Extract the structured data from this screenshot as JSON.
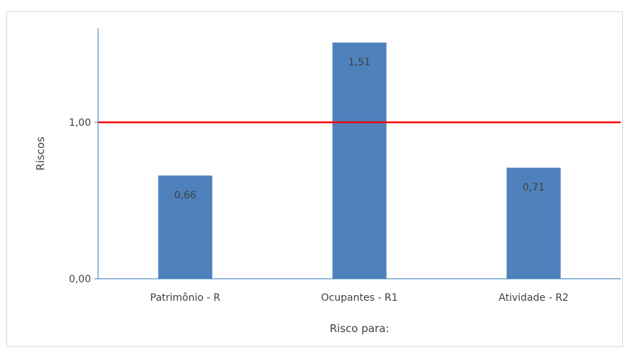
{
  "chart_data": {
    "type": "bar",
    "categories": [
      "Patrimônio - R",
      "Ocupantes - R1",
      "Atividade - R2"
    ],
    "values": [
      0.66,
      1.51,
      0.71
    ],
    "data_labels": [
      "0,66",
      "1,51",
      "0,71"
    ],
    "title": "",
    "xlabel": "Risco para:",
    "ylabel": "Riscos",
    "yticks": [
      {
        "value": 0,
        "label": "0,00"
      },
      {
        "value": 1,
        "label": "1,00"
      }
    ],
    "ylim": [
      0,
      1.6
    ],
    "reference_line": {
      "value": 1.0,
      "color": "#ff0000"
    },
    "bar_color": "#4f81bd",
    "grid": false,
    "legend": "none"
  }
}
